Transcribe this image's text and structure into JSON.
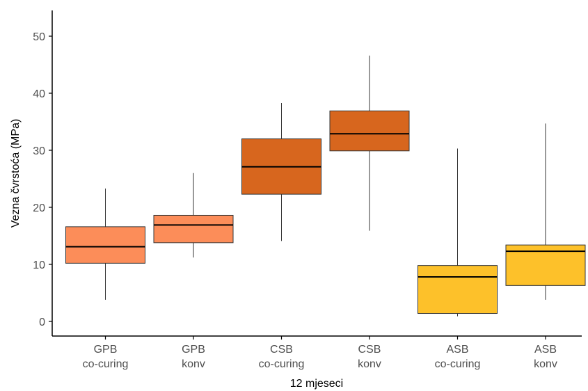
{
  "chart_data": {
    "type": "boxplot",
    "xlabel": "12 mjeseci",
    "ylabel": "Vezna čvrstoća (MPa)",
    "ylim": [
      -2.5,
      55
    ],
    "yticks": [
      0,
      10,
      20,
      30,
      40,
      50
    ],
    "grid": false,
    "legend": "none",
    "boxes": [
      {
        "label_line1": "GPB",
        "label_line2": "co-curing",
        "min": 3.8,
        "q1": 10.2,
        "median": 13.1,
        "q3": 16.6,
        "max": 23.3,
        "color": "#fc8d59"
      },
      {
        "label_line1": "GPB",
        "label_line2": "konv",
        "min": 11.2,
        "q1": 13.8,
        "median": 16.9,
        "q3": 18.6,
        "max": 26.0,
        "color": "#fc8d59"
      },
      {
        "label_line1": "CSB",
        "label_line2": "co-curing",
        "min": 14.1,
        "q1": 22.3,
        "median": 27.1,
        "q3": 32.0,
        "max": 38.3,
        "color": "#d7661e"
      },
      {
        "label_line1": "CSB",
        "label_line2": "konv",
        "min": 15.9,
        "q1": 29.9,
        "median": 32.9,
        "q3": 36.9,
        "max": 46.6,
        "color": "#d7661e"
      },
      {
        "label_line1": "ASB",
        "label_line2": "co-curing",
        "min": 0.9,
        "q1": 1.4,
        "median": 7.8,
        "q3": 9.8,
        "max": 30.3,
        "color": "#fdc12a"
      },
      {
        "label_line1": "ASB",
        "label_line2": "konv",
        "min": 3.8,
        "q1": 6.3,
        "median": 12.3,
        "q3": 13.4,
        "max": 34.7,
        "color": "#fdc12a"
      }
    ]
  }
}
